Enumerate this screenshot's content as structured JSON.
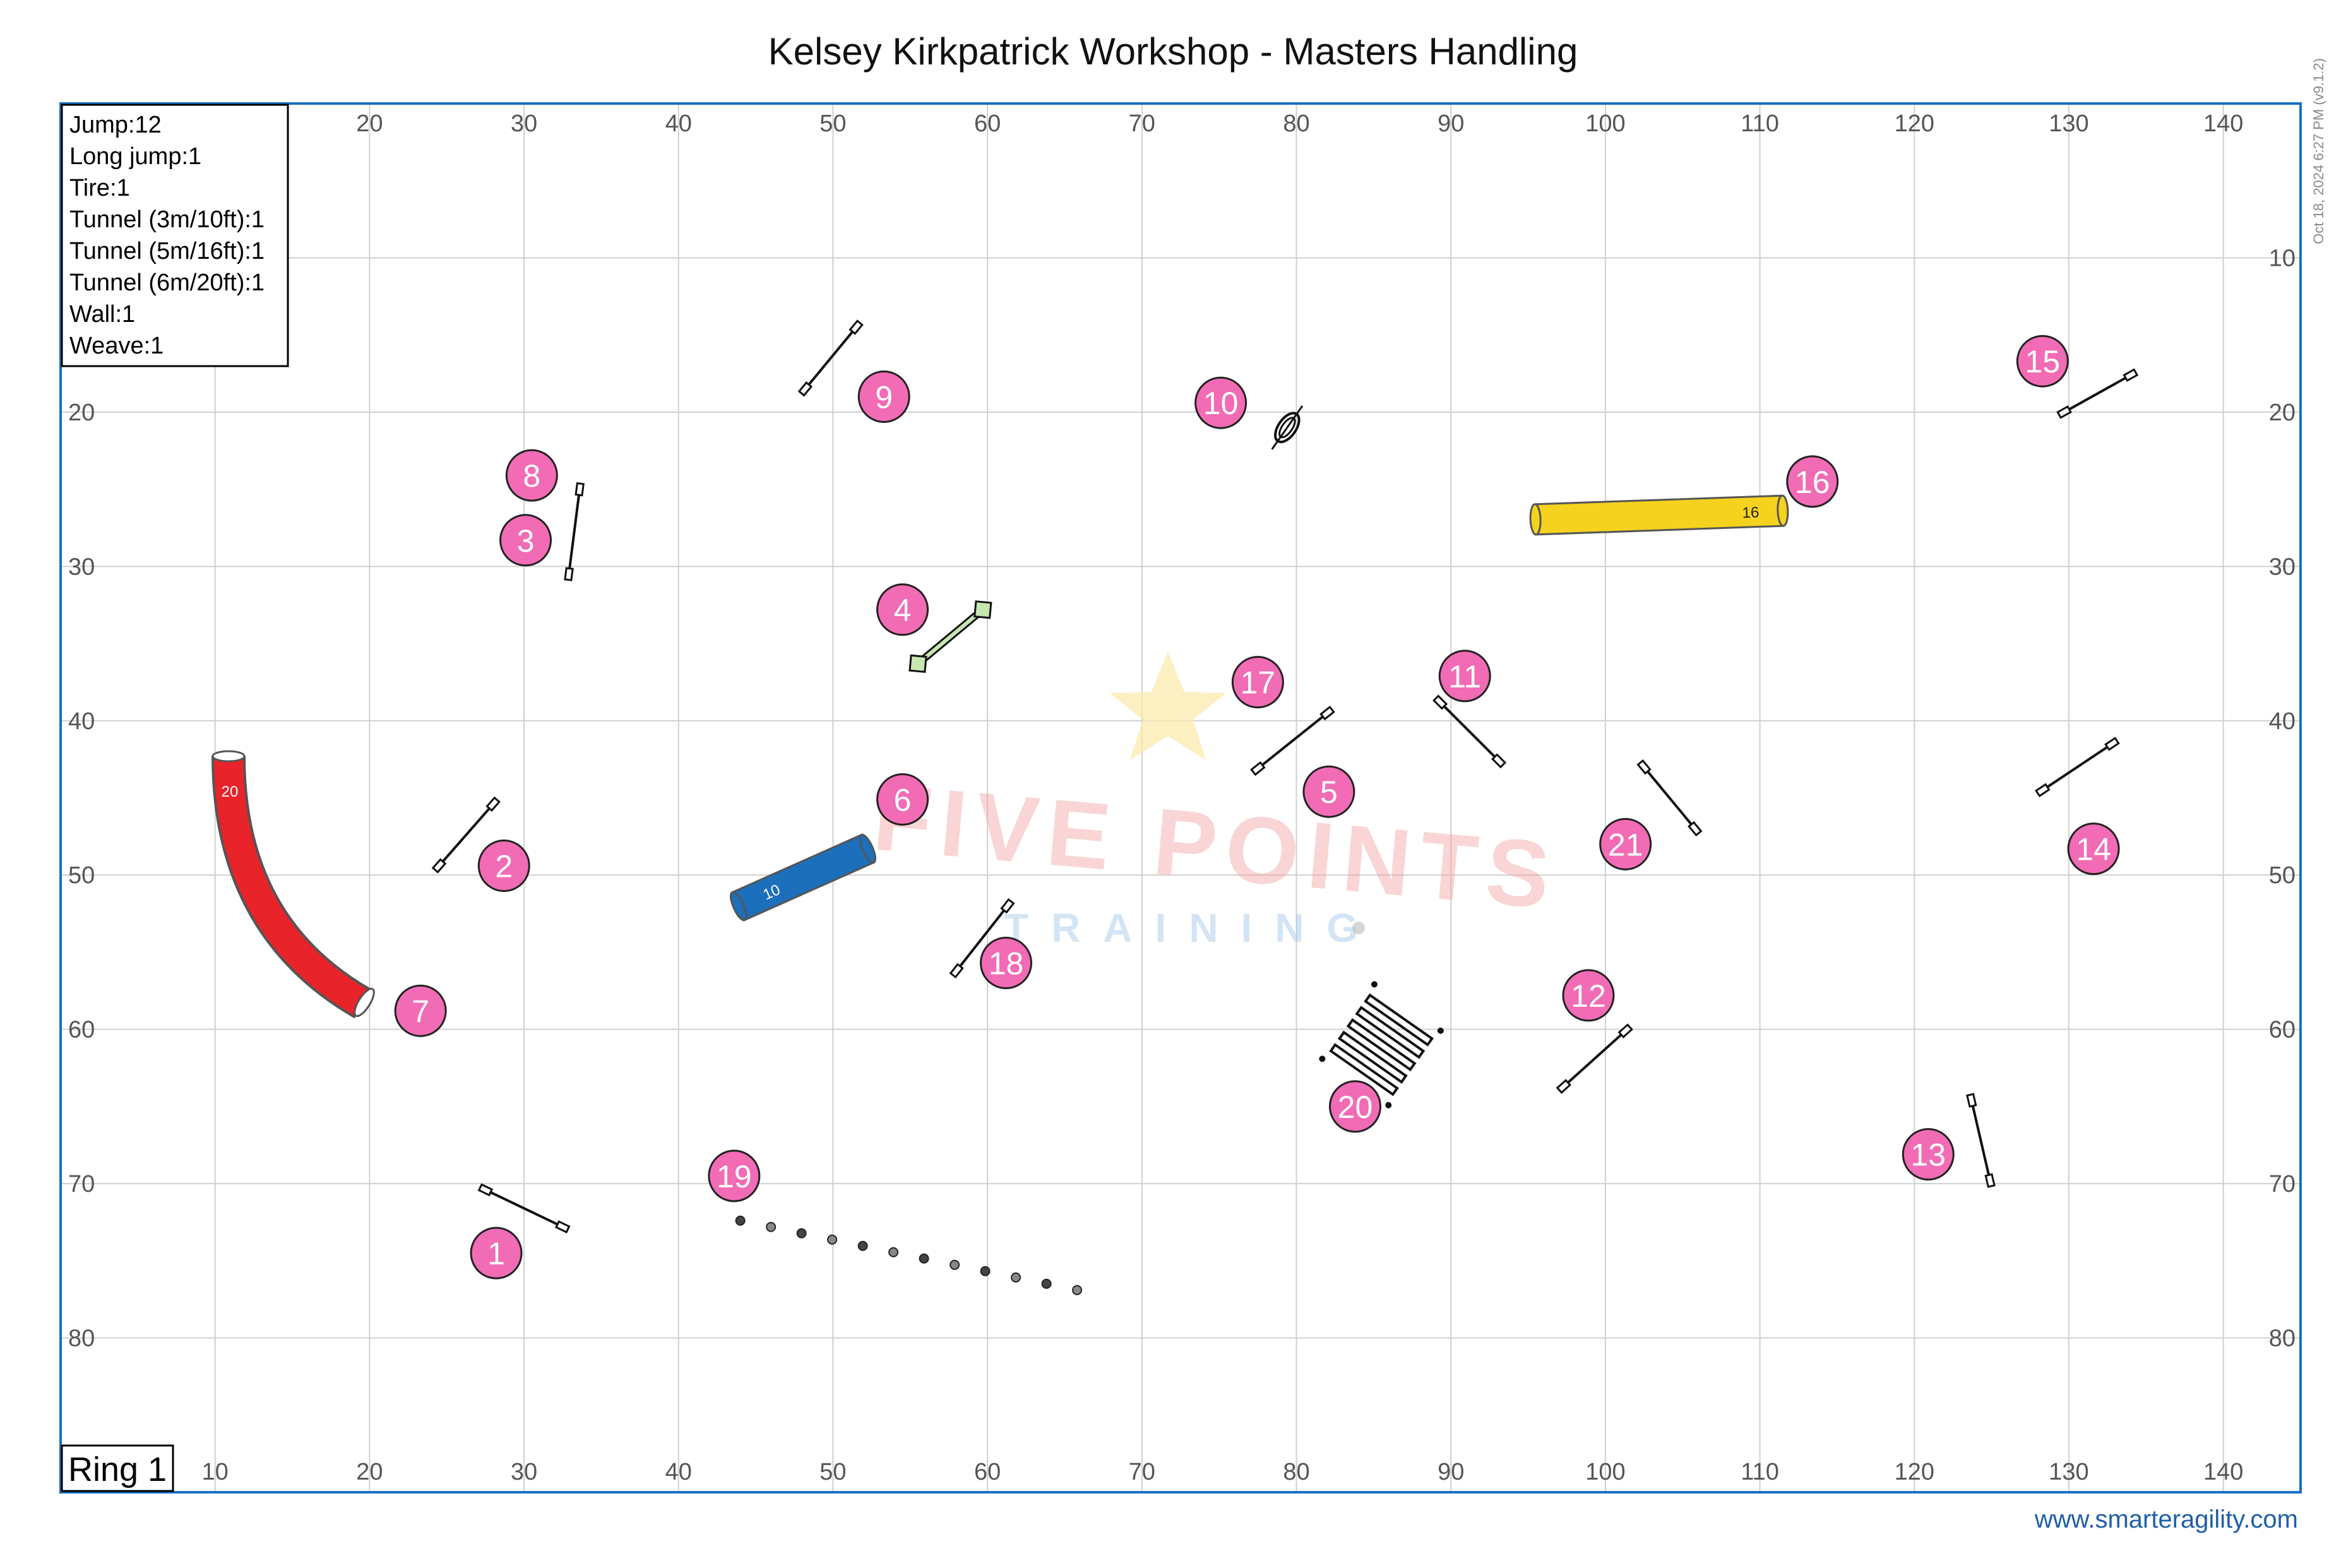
{
  "title": "Kelsey Kirkpatrick Workshop - Masters Handling",
  "timestamp": "Oct 18, 2024 6:27 PM  (v9.1.2)",
  "website": "www.smarteragility.com",
  "ring_label": "Ring 1",
  "watermark": {
    "main": "FIVE POINTS",
    "sub": "TRAINING"
  },
  "x_ticks": [
    "10",
    "20",
    "30",
    "40",
    "50",
    "60",
    "70",
    "80",
    "90",
    "100",
    "110",
    "120",
    "130",
    "140"
  ],
  "y_ticks": [
    "10",
    "20",
    "30",
    "40",
    "50",
    "60",
    "70",
    "80"
  ],
  "legend": [
    "Jump:12",
    "Long jump:1",
    "Tire:1",
    "Tunnel (3m/10ft):1",
    "Tunnel (5m/16ft):1",
    "Tunnel (6m/20ft):1",
    "Wall:1",
    "Weave:1"
  ],
  "colors": {
    "frame": "#1a6fc4",
    "grid": "#d0d0d0",
    "number_fill": "#f26bb5",
    "tunnel_20": "#e8232a",
    "tunnel_10": "#1c6fba",
    "tunnel_16": "#f5d21e",
    "wall_fill": "#c8e6b0"
  },
  "field": {
    "x_range": [
      0,
      145
    ],
    "y_range": [
      0,
      90
    ]
  },
  "numbers": [
    {
      "label": "1",
      "x": 28.2,
      "y": 74.5
    },
    {
      "label": "2",
      "x": 28.7,
      "y": 49.4
    },
    {
      "label": "3",
      "x": 30.1,
      "y": 28.3
    },
    {
      "label": "4",
      "x": 54.5,
      "y": 32.8
    },
    {
      "label": "5",
      "x": 82.1,
      "y": 44.6
    },
    {
      "label": "6",
      "x": 54.5,
      "y": 45.1
    },
    {
      "label": "7",
      "x": 23.3,
      "y": 58.8
    },
    {
      "label": "8",
      "x": 30.5,
      "y": 24.1
    },
    {
      "label": "9",
      "x": 53.3,
      "y": 19.0
    },
    {
      "label": "10",
      "x": 75.1,
      "y": 19.4
    },
    {
      "label": "11",
      "x": 90.9,
      "y": 37.1
    },
    {
      "label": "12",
      "x": 98.9,
      "y": 57.8
    },
    {
      "label": "13",
      "x": 120.9,
      "y": 68.1
    },
    {
      "label": "14",
      "x": 131.6,
      "y": 48.3
    },
    {
      "label": "15",
      "x": 128.3,
      "y": 16.7
    },
    {
      "label": "16",
      "x": 113.4,
      "y": 24.5
    },
    {
      "label": "17",
      "x": 77.5,
      "y": 37.5
    },
    {
      "label": "18",
      "x": 61.2,
      "y": 55.7
    },
    {
      "label": "19",
      "x": 43.6,
      "y": 69.5
    },
    {
      "label": "20",
      "x": 83.8,
      "y": 65.0
    },
    {
      "label": "21",
      "x": 101.3,
      "y": 48.0
    }
  ],
  "jumps": [
    {
      "x1": 27.5,
      "y1": 70.4,
      "x2": 32.5,
      "y2": 72.8
    },
    {
      "x1": 24.5,
      "y1": 49.4,
      "x2": 28.0,
      "y2": 45.4
    },
    {
      "x1": 33.6,
      "y1": 25.0,
      "x2": 32.9,
      "y2": 30.5
    },
    {
      "x1": 82.0,
      "y1": 39.5,
      "x2": 77.5,
      "y2": 43.1
    },
    {
      "x1": 58.0,
      "y1": 56.2,
      "x2": 61.3,
      "y2": 52.0
    },
    {
      "x1": 51.5,
      "y1": 14.5,
      "x2": 48.2,
      "y2": 18.5
    },
    {
      "x1": 89.3,
      "y1": 38.8,
      "x2": 93.1,
      "y2": 42.6
    },
    {
      "x1": 102.5,
      "y1": 43.0,
      "x2": 105.8,
      "y2": 47.0
    },
    {
      "x1": 97.3,
      "y1": 63.7,
      "x2": 101.3,
      "y2": 60.1
    },
    {
      "x1": 123.7,
      "y1": 64.6,
      "x2": 124.9,
      "y2": 69.8
    },
    {
      "x1": 128.3,
      "y1": 44.5,
      "x2": 132.8,
      "y2": 41.5
    },
    {
      "x1": 129.7,
      "y1": 20.0,
      "x2": 134.0,
      "y2": 17.6
    }
  ],
  "wall": {
    "x1": 55.5,
    "y1": 36.3,
    "x2": 59.7,
    "y2": 32.8
  },
  "tire": {
    "x": 79.4,
    "y": 21.0
  },
  "long_jump": {
    "x": 85.5,
    "y": 61.0
  },
  "weave": {
    "x1": 44.0,
    "y1": 72.4,
    "x2": 65.8,
    "y2": 76.9,
    "count": 12
  },
  "tunnels": [
    {
      "label": "20",
      "color": "tunnel_20"
    },
    {
      "label": "10",
      "color": "tunnel_10"
    },
    {
      "label": "16",
      "color": "tunnel_16"
    }
  ]
}
